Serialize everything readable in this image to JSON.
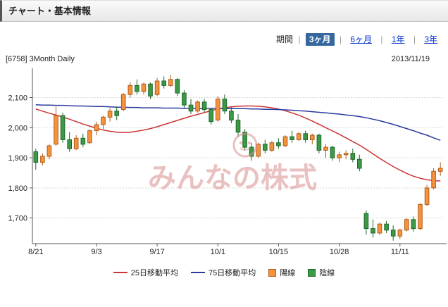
{
  "header": {
    "title": "チャート・基本情報"
  },
  "period_selector": {
    "label": "期間",
    "separator": "|",
    "selected_bg": "#35689e",
    "link_color": "#0033cc",
    "options": [
      {
        "label": "3ヶ月",
        "selected": true
      },
      {
        "label": "6ヶ月",
        "selected": false
      },
      {
        "label": "1年",
        "selected": false
      },
      {
        "label": "3年",
        "selected": false
      }
    ]
  },
  "chart_header": {
    "code_label": "[6758] 3Month Daily",
    "date": "2013/11/19"
  },
  "watermark": {
    "text": "みんなの株式",
    "color": "#d98f8f"
  },
  "legend": [
    {
      "label": "25日移動平均",
      "type": "line",
      "color": "#cc3333",
      "border": "#cc3333"
    },
    {
      "label": "75日移動平均",
      "type": "line",
      "color": "#2b3a9e",
      "border": "#2b3a9e"
    },
    {
      "label": "陽線",
      "type": "square",
      "color": "#f5923e",
      "border": "#b05f1a"
    },
    {
      "label": "陰線",
      "type": "square",
      "color": "#3c9a46",
      "border": "#1e662a"
    }
  ],
  "chart_data": {
    "type": "candlestick",
    "title": "[6758] 3Month Daily",
    "xlabel": "",
    "ylabel": "",
    "grid": true,
    "legend_position": "bottom",
    "ylim": [
      1615,
      2190
    ],
    "yticks": [
      1700,
      1800,
      1900,
      2000,
      2100
    ],
    "ytick_labels": [
      "1,700",
      "1,800",
      "1,900",
      "2,000",
      "2,100"
    ],
    "xtick_indices": [
      0,
      9,
      18,
      27,
      36,
      45,
      54
    ],
    "xtick_labels": [
      "8/21",
      "9/3",
      "9/17",
      "10/1",
      "10/15",
      "10/28",
      "11/11"
    ],
    "colors": {
      "up": "#f5923e",
      "up_border": "#b05f1a",
      "down": "#3c9a46",
      "down_border": "#1e662a",
      "axis": "#555",
      "grid": "#d8d8d8"
    },
    "dates": [
      "8/21",
      "8/22",
      "8/23",
      "8/26",
      "8/27",
      "8/28",
      "8/29",
      "8/30",
      "9/2",
      "9/3",
      "9/4",
      "9/5",
      "9/6",
      "9/9",
      "9/10",
      "9/11",
      "9/12",
      "9/13",
      "9/17",
      "9/18",
      "9/19",
      "9/20",
      "9/24",
      "9/25",
      "9/26",
      "9/27",
      "9/30",
      "10/1",
      "10/2",
      "10/3",
      "10/4",
      "10/7",
      "10/8",
      "10/9",
      "10/10",
      "10/11",
      "10/15",
      "10/16",
      "10/17",
      "10/18",
      "10/21",
      "10/22",
      "10/23",
      "10/24",
      "10/25",
      "10/28",
      "10/29",
      "10/30",
      "10/31",
      "11/1",
      "11/5",
      "11/6",
      "11/7",
      "11/8",
      "11/11",
      "11/12",
      "11/13",
      "11/14",
      "11/15",
      "11/18",
      "11/19"
    ],
    "ohlc": [
      [
        1920,
        1930,
        1860,
        1885
      ],
      [
        1885,
        1915,
        1875,
        1905
      ],
      [
        1905,
        1945,
        1895,
        1940
      ],
      [
        1945,
        2070,
        1940,
        2040
      ],
      [
        2040,
        2050,
        1950,
        1960
      ],
      [
        1960,
        1985,
        1920,
        1930
      ],
      [
        1930,
        1975,
        1925,
        1965
      ],
      [
        1965,
        1980,
        1935,
        1945
      ],
      [
        1950,
        1995,
        1945,
        1990
      ],
      [
        1990,
        2020,
        1975,
        2010
      ],
      [
        2010,
        2040,
        1995,
        2035
      ],
      [
        2035,
        2065,
        2020,
        2055
      ],
      [
        2055,
        2070,
        2025,
        2040
      ],
      [
        2060,
        2115,
        2055,
        2110
      ],
      [
        2110,
        2150,
        2100,
        2140
      ],
      [
        2140,
        2160,
        2110,
        2120
      ],
      [
        2120,
        2150,
        2110,
        2145
      ],
      [
        2145,
        2150,
        2095,
        2105
      ],
      [
        2110,
        2165,
        2105,
        2155
      ],
      [
        2155,
        2170,
        2130,
        2140
      ],
      [
        2140,
        2175,
        2135,
        2160
      ],
      [
        2160,
        2165,
        2105,
        2115
      ],
      [
        2115,
        2125,
        2065,
        2075
      ],
      [
        2075,
        2095,
        2045,
        2055
      ],
      [
        2055,
        2090,
        2050,
        2085
      ],
      [
        2085,
        2095,
        2050,
        2060
      ],
      [
        2060,
        2065,
        2010,
        2020
      ],
      [
        2025,
        2105,
        2020,
        2095
      ],
      [
        2095,
        2110,
        2045,
        2055
      ],
      [
        2055,
        2070,
        2015,
        2025
      ],
      [
        2025,
        2045,
        1970,
        1985
      ],
      [
        1985,
        1995,
        1925,
        1935
      ],
      [
        1935,
        1950,
        1890,
        1905
      ],
      [
        1905,
        1950,
        1900,
        1945
      ],
      [
        1945,
        1960,
        1915,
        1925
      ],
      [
        1925,
        1955,
        1920,
        1950
      ],
      [
        1950,
        1965,
        1930,
        1940
      ],
      [
        1940,
        1975,
        1935,
        1970
      ],
      [
        1970,
        1990,
        1950,
        1960
      ],
      [
        1960,
        1985,
        1955,
        1980
      ],
      [
        1980,
        1990,
        1950,
        1960
      ],
      [
        1960,
        1980,
        1945,
        1975
      ],
      [
        1975,
        1980,
        1915,
        1925
      ],
      [
        1925,
        1945,
        1900,
        1935
      ],
      [
        1935,
        1940,
        1890,
        1900
      ],
      [
        1900,
        1920,
        1885,
        1910
      ],
      [
        1910,
        1925,
        1895,
        1915
      ],
      [
        1915,
        1930,
        1885,
        1895
      ],
      [
        1895,
        1910,
        1855,
        1865
      ],
      [
        1715,
        1725,
        1645,
        1665
      ],
      [
        1665,
        1695,
        1635,
        1650
      ],
      [
        1650,
        1685,
        1645,
        1680
      ],
      [
        1680,
        1690,
        1650,
        1660
      ],
      [
        1660,
        1675,
        1625,
        1640
      ],
      [
        1640,
        1665,
        1630,
        1660
      ],
      [
        1660,
        1700,
        1655,
        1695
      ],
      [
        1695,
        1705,
        1655,
        1665
      ],
      [
        1665,
        1750,
        1660,
        1745
      ],
      [
        1745,
        1810,
        1740,
        1800
      ],
      [
        1800,
        1865,
        1795,
        1855
      ],
      [
        1855,
        1885,
        1840,
        1865
      ]
    ],
    "series": [
      {
        "name": "25日移動平均",
        "color": "#cc3333",
        "values": [
          2062,
          2055,
          2048,
          2042,
          2035,
          2028,
          2020,
          2012,
          2005,
          1998,
          1992,
          1988,
          1985,
          1984,
          1985,
          1988,
          1992,
          1997,
          2003,
          2010,
          2017,
          2024,
          2031,
          2038,
          2044,
          2050,
          2056,
          2062,
          2066,
          2069,
          2071,
          2072,
          2072,
          2071,
          2069,
          2066,
          2062,
          2056,
          2049,
          2041,
          2032,
          2022,
          2011,
          2000,
          1989,
          1978,
          1966,
          1954,
          1942,
          1928,
          1913,
          1898,
          1884,
          1871,
          1859,
          1848,
          1839,
          1832,
          1827,
          1824,
          1823
        ]
      },
      {
        "name": "75日移動平均",
        "color": "#2b3a9e",
        "values": [
          2076,
          2075,
          2075,
          2074,
          2074,
          2073,
          2072,
          2072,
          2071,
          2070,
          2070,
          2069,
          2068,
          2068,
          2067,
          2067,
          2066,
          2066,
          2066,
          2065,
          2065,
          2065,
          2064,
          2064,
          2064,
          2064,
          2064,
          2064,
          2063,
          2063,
          2063,
          2063,
          2062,
          2062,
          2061,
          2061,
          2060,
          2059,
          2058,
          2056,
          2055,
          2053,
          2051,
          2049,
          2047,
          2045,
          2042,
          2040,
          2037,
          2033,
          2028,
          2023,
          2017,
          2011,
          2004,
          1997,
          1990,
          1982,
          1975,
          1966,
          1958
        ]
      }
    ]
  }
}
